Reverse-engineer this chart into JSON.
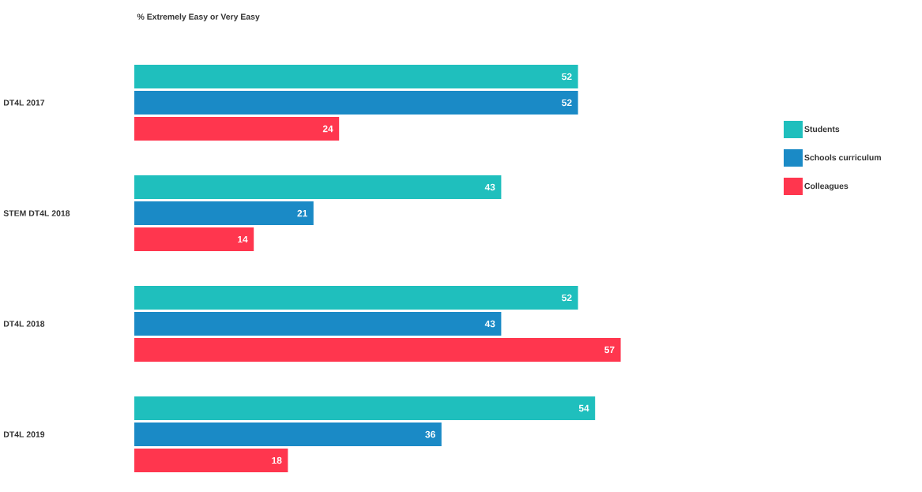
{
  "chart_data": {
    "type": "bar",
    "orientation": "horizontal",
    "title": "% Extremely Easy or Very Easy",
    "categories": [
      "DT4L 2017",
      "STEM DT4L 2018",
      "DT4L 2018",
      "DT4L 2019"
    ],
    "series": [
      {
        "name": "Students",
        "color": "#1fbfbd",
        "values": [
          52,
          43,
          52,
          54
        ]
      },
      {
        "name": "Schools curriculum",
        "color": "#1a8ac6",
        "values": [
          52,
          21,
          43,
          36
        ]
      },
      {
        "name": "Colleagues",
        "color": "#ff364e",
        "values": [
          24,
          14,
          57,
          18
        ]
      }
    ],
    "data_labels": true,
    "legend": "right"
  }
}
